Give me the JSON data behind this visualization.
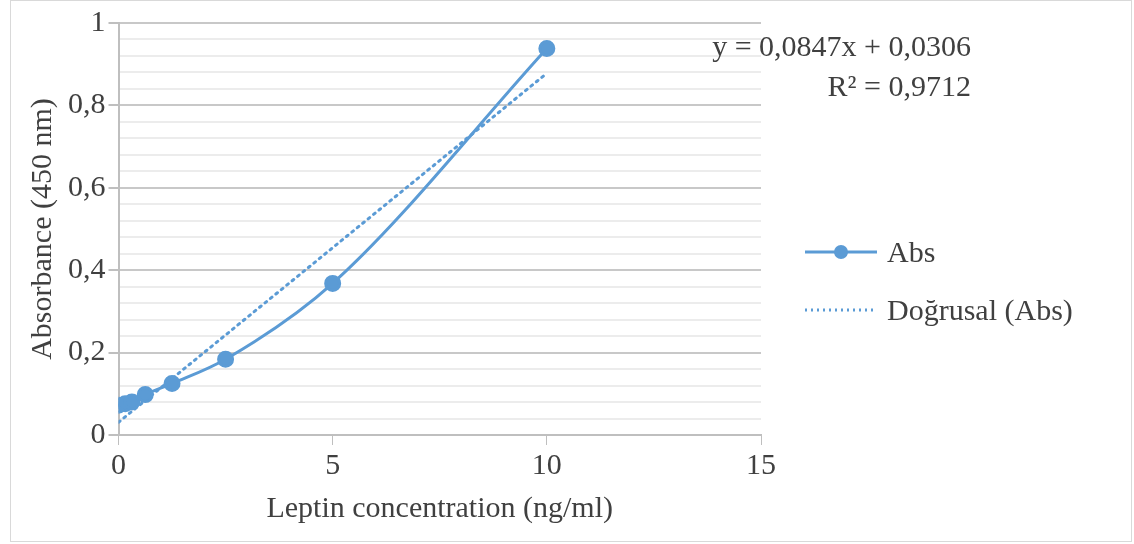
{
  "chart_data": {
    "type": "line",
    "xlabel": "Leptin concentration (ng/ml)",
    "ylabel": "Absorbance (450 nm)",
    "x": [
      0,
      0.156,
      0.3125,
      0.625,
      1.25,
      2.5,
      5,
      10
    ],
    "series": [
      {
        "name": "Abs",
        "color": "#5b9bd5",
        "values": [
          0.072,
          0.076,
          0.08,
          0.098,
          0.125,
          0.184,
          0.368,
          0.938
        ],
        "marker": "circle",
        "line_style": "solid"
      },
      {
        "name": "Doğrusal (Abs)",
        "type": "line",
        "color": "#5b9bd5",
        "x": [
          0,
          10
        ],
        "values": [
          0.031,
          0.878
        ],
        "marker": "none",
        "line_style": "dotted"
      }
    ],
    "xlim": [
      0,
      15
    ],
    "xticks": [
      0,
      5,
      10,
      15
    ],
    "ylim": [
      0,
      1
    ],
    "yticks": [
      0,
      {
        "value": 0.04,
        "label": null
      },
      {
        "value": 0.08,
        "label": null
      },
      {
        "value": 0.12,
        "label": null
      },
      {
        "value": 0.16,
        "label": null
      },
      {
        "value": 0.2,
        "label": "0,2"
      },
      {
        "value": 0.24,
        "label": null
      },
      {
        "value": 0.28,
        "label": null
      },
      {
        "value": 0.32,
        "label": null
      },
      {
        "value": 0.36,
        "label": null
      },
      {
        "value": 0.4,
        "label": "0,4"
      },
      {
        "value": 0.44,
        "label": null
      },
      {
        "value": 0.48,
        "label": null
      },
      {
        "value": 0.52,
        "label": null
      },
      {
        "value": 0.56,
        "label": null
      },
      {
        "value": 0.6,
        "label": "0,6"
      },
      {
        "value": 0.64,
        "label": null
      },
      {
        "value": 0.68,
        "label": null
      },
      {
        "value": 0.72,
        "label": null
      },
      {
        "value": 0.76,
        "label": null
      },
      {
        "value": 0.8,
        "label": "0,8"
      },
      {
        "value": 0.84,
        "label": null
      },
      {
        "value": 0.88,
        "label": null
      },
      {
        "value": 0.92,
        "label": null
      },
      {
        "value": 0.96,
        "label": null
      },
      1
    ],
    "grid": "y",
    "legend": "right",
    "annotations": [
      "y = 0,0847x + 0,0306",
      "R² = 0,9712"
    ]
  }
}
